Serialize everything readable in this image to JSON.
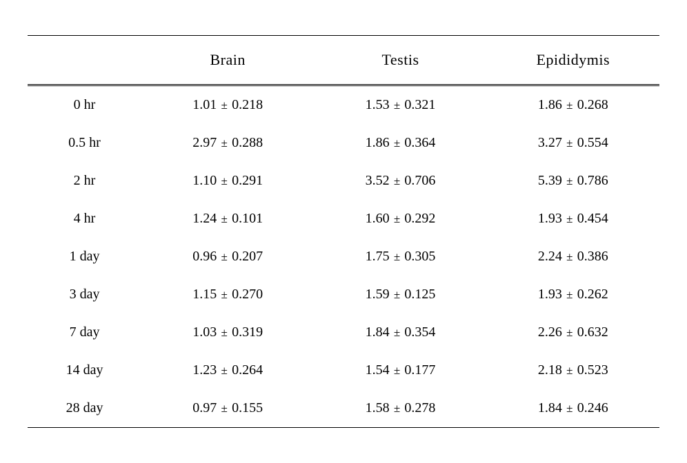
{
  "table": {
    "type": "table",
    "background_color": "#ffffff",
    "text_color": "#000000",
    "border_color": "#000000",
    "header_fontsize": 22,
    "cell_fontsize": 20,
    "plusminus_fontsize": 17,
    "columns": [
      "",
      "Brain",
      "Testis",
      "Epididymis"
    ],
    "column_widths": [
      "18%",
      "27.3%",
      "27.3%",
      "27.3%"
    ],
    "column_alignment": [
      "center",
      "center",
      "center",
      "center"
    ],
    "border_top_width": 1.5,
    "border_bottom_width": 1.5,
    "header_border_style": "double",
    "rows": [
      {
        "time": "0 hr",
        "brain_mean": "1.01",
        "brain_err": "0.218",
        "testis_mean": "1.53",
        "testis_err": "0.321",
        "epididymis_mean": "1.86",
        "epididymis_err": "0.268"
      },
      {
        "time": "0.5 hr",
        "brain_mean": "2.97",
        "brain_err": "0.288",
        "testis_mean": "1.86",
        "testis_err": "0.364",
        "epididymis_mean": "3.27",
        "epididymis_err": "0.554"
      },
      {
        "time": "2 hr",
        "brain_mean": "1.10",
        "brain_err": "0.291",
        "testis_mean": "3.52",
        "testis_err": "0.706",
        "epididymis_mean": "5.39",
        "epididymis_err": "0.786"
      },
      {
        "time": "4 hr",
        "brain_mean": "1.24",
        "brain_err": "0.101",
        "testis_mean": "1.60",
        "testis_err": "0.292",
        "epididymis_mean": "1.93",
        "epididymis_err": "0.454"
      },
      {
        "time": "1 day",
        "brain_mean": "0.96",
        "brain_err": "0.207",
        "testis_mean": "1.75",
        "testis_err": "0.305",
        "epididymis_mean": "2.24",
        "epididymis_err": "0.386"
      },
      {
        "time": "3 day",
        "brain_mean": "1.15",
        "brain_err": "0.270",
        "testis_mean": "1.59",
        "testis_err": "0.125",
        "epididymis_mean": "1.93",
        "epididymis_err": "0.262"
      },
      {
        "time": "7 day",
        "brain_mean": "1.03",
        "brain_err": "0.319",
        "testis_mean": "1.84",
        "testis_err": "0.354",
        "epididymis_mean": "2.26",
        "epididymis_err": "0.632"
      },
      {
        "time": "14 day",
        "brain_mean": "1.23",
        "brain_err": "0.264",
        "testis_mean": "1.54",
        "testis_err": "0.177",
        "epididymis_mean": "2.18",
        "epididymis_err": "0.523"
      },
      {
        "time": "28 day",
        "brain_mean": "0.97",
        "brain_err": "0.155",
        "testis_mean": "1.58",
        "testis_err": "0.278",
        "epididymis_mean": "1.84",
        "epididymis_err": "0.246"
      }
    ],
    "plusminus_symbol": "±"
  }
}
